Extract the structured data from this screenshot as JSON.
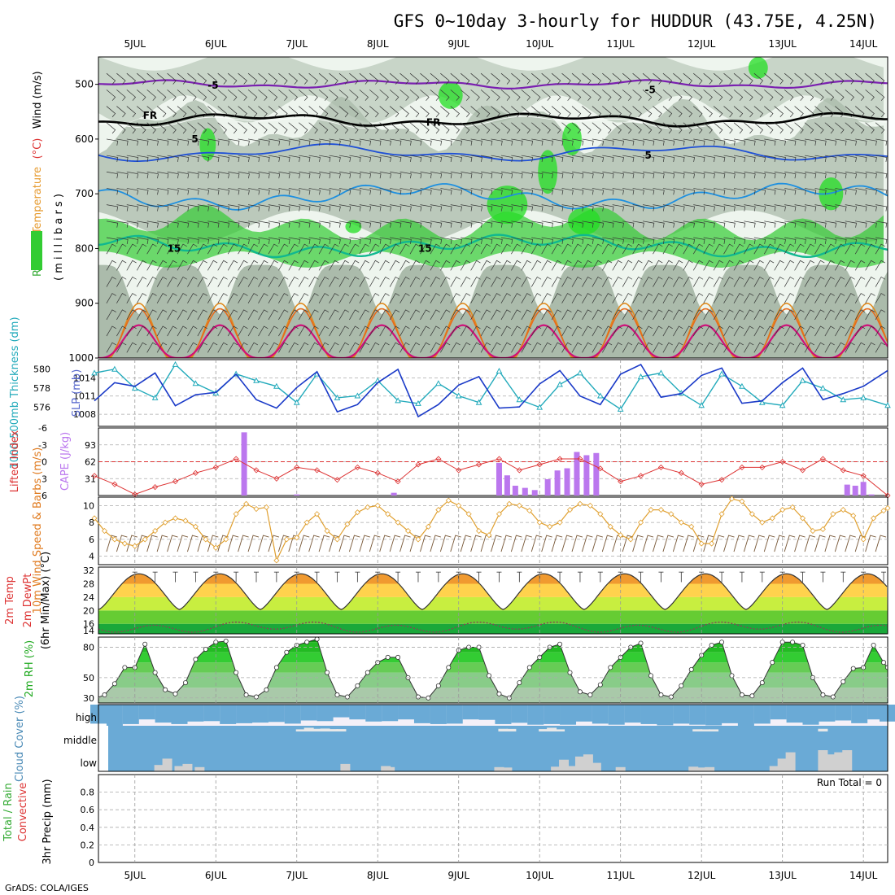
{
  "title": "GFS 0~10day 3-hourly for HUDDUR (43.75E, 4.25N)",
  "footer": "GrADS: COLA/IGES",
  "colors": {
    "rh_green": "#33cc33",
    "rh_gray": "#a9b9a9",
    "temp_purple": "#7a1fb0",
    "temp_blue": "#1e4fd6",
    "temp_lightblue": "#1e90e0",
    "temp_teal": "#10b890",
    "temp_orange": "#e08a1e",
    "temp_pink": "#d0107a",
    "thickness": "#22aabb",
    "slp": "#1a3ac8",
    "lifted_index": "#dd3333",
    "cape": "#bb77ee",
    "wind10m": "#e0a030",
    "barbs": "#7a5a3a",
    "rh2m": "#22bb22",
    "cloud": "#6aaad6",
    "cloud_clear": "#f4f0f8",
    "cloud_low_gray": "#d0d0d0"
  },
  "chart_data": [
    {
      "id": "upper_air",
      "type": "heatmap",
      "ylabel_parts": [
        {
          "text": "RH (%)",
          "color": "#33aa33"
        },
        {
          "text": "Temperature",
          "color": "#e69a2e"
        },
        {
          "text": "(°C)",
          "color": "#dd3333"
        },
        {
          "text": "Wind (m/s)",
          "color": "#000000"
        }
      ],
      "ylabel2": "( m i l l i b a r s )",
      "y_axis": {
        "min": 450,
        "max": 1000,
        "ticks": [
          500,
          600,
          700,
          800,
          900,
          1000
        ],
        "inverted": true
      },
      "x_dates": [
        "5JUL",
        "6JUL",
        "7JUL",
        "8JUL",
        "9JUL",
        "10JUL",
        "11JUL",
        "12JUL",
        "13JUL",
        "14JUL"
      ],
      "x_range_days": [
        4.55,
        14.3
      ],
      "isotherm_labels": [
        {
          "text": "-5",
          "day": 5.9,
          "p": 502,
          "color": "#7a1fb0"
        },
        {
          "text": "-5",
          "day": 11.3,
          "p": 510,
          "color": "#7a1fb0"
        },
        {
          "text": "FR",
          "day": 5.1,
          "p": 557,
          "color": "#000000"
        },
        {
          "text": "FR",
          "day": 8.6,
          "p": 570,
          "color": "#000000"
        },
        {
          "text": "5",
          "day": 5.7,
          "p": 600,
          "color": "#1e4fd6"
        },
        {
          "text": "5",
          "day": 11.3,
          "p": 630,
          "color": "#1e4fd6"
        },
        {
          "text": "15",
          "day": 5.4,
          "p": 800,
          "color": "#10b890"
        },
        {
          "text": "15",
          "day": 8.5,
          "p": 800,
          "color": "#10b890"
        }
      ]
    },
    {
      "id": "thickness_slp",
      "type": "line",
      "ylabel_left": "1000-500mb Thickness (dm)",
      "ylabel_right": "SLP (mb)",
      "y_left": {
        "min": 574,
        "max": 581,
        "ticks": [
          576,
          578,
          580
        ]
      },
      "y_right": {
        "min": 1006,
        "max": 1017,
        "ticks": [
          1008,
          1011,
          1014
        ]
      },
      "series": [
        {
          "name": "1000-500mb Thickness",
          "axis": "left",
          "x": [
            4.5,
            4.75,
            5.0,
            5.25,
            5.5,
            5.75,
            6.0,
            6.25,
            6.5,
            6.75,
            7.0,
            7.25,
            7.5,
            7.75,
            8.0,
            8.25,
            8.5,
            8.75,
            9.0,
            9.25,
            9.5,
            9.75,
            10.0,
            10.25,
            10.5,
            10.75,
            11.0,
            11.25,
            11.5,
            11.75,
            12.0,
            12.25,
            12.5,
            12.75,
            13.0,
            13.25,
            13.5,
            13.75,
            14.0,
            14.3
          ],
          "y": [
            579.6,
            580.0,
            578.0,
            577.0,
            580.5,
            578.5,
            577.5,
            579.5,
            578.8,
            578.2,
            576.5,
            579.5,
            577.0,
            577.2,
            578.8,
            576.7,
            576.4,
            578.5,
            577.2,
            576.5,
            579.8,
            576.8,
            576.0,
            578.4,
            579.6,
            577.2,
            575.8,
            579.2,
            579.6,
            577.5,
            576.2,
            579.5,
            578.2,
            576.5,
            576.2,
            578.8,
            578.0,
            576.8,
            577.0,
            576.2
          ]
        },
        {
          "name": "SLP",
          "axis": "right",
          "x": [
            4.5,
            4.75,
            5.0,
            5.25,
            5.5,
            5.75,
            6.0,
            6.25,
            6.5,
            6.75,
            7.0,
            7.25,
            7.5,
            7.75,
            8.0,
            8.25,
            8.5,
            8.75,
            9.0,
            9.25,
            9.5,
            9.75,
            10.0,
            10.25,
            10.5,
            10.75,
            11.0,
            11.25,
            11.5,
            11.75,
            12.0,
            12.25,
            12.5,
            12.75,
            13.0,
            13.25,
            13.5,
            13.75,
            14.0,
            14.3
          ],
          "y": [
            1010.2,
            1013.2,
            1012.6,
            1014.8,
            1009.4,
            1011.2,
            1011.6,
            1014.6,
            1010.4,
            1009.0,
            1012.4,
            1015.0,
            1008.4,
            1009.6,
            1013.2,
            1015.4,
            1007.6,
            1009.6,
            1012.8,
            1014.2,
            1009.0,
            1009.2,
            1013.0,
            1015.2,
            1011.0,
            1009.6,
            1014.6,
            1016.2,
            1010.8,
            1011.4,
            1014.4,
            1015.6,
            1009.8,
            1010.2,
            1013.2,
            1015.6,
            1010.4,
            1011.4,
            1012.6,
            1015.2
          ]
        }
      ]
    },
    {
      "id": "lifted_cape",
      "type": "bar",
      "ylabel_left": "Lifted Index",
      "ylabel_right": "CAPE (J/kg)",
      "y_left": {
        "min": -6,
        "max": 6,
        "ticks": [
          -6,
          -3,
          0,
          3,
          6
        ],
        "tick_labels": [
          "-6",
          "-3",
          "0",
          "3",
          "6"
        ],
        "inverted": true
      },
      "y_right": {
        "min": 0,
        "max": 124,
        "ticks": [
          31,
          62,
          93
        ]
      },
      "lifted_index": {
        "x": [
          4.5,
          4.75,
          5.0,
          5.25,
          5.5,
          5.75,
          6.0,
          6.25,
          6.5,
          6.75,
          7.0,
          7.25,
          7.5,
          7.75,
          8.0,
          8.25,
          8.5,
          8.75,
          9.0,
          9.25,
          9.5,
          9.75,
          10.0,
          10.25,
          10.5,
          10.75,
          11.0,
          11.25,
          11.5,
          11.75,
          12.0,
          12.25,
          12.5,
          12.75,
          13.0,
          13.25,
          13.5,
          13.75,
          14.0,
          14.3
        ],
        "y": [
          2.5,
          4.0,
          5.8,
          4.5,
          3.5,
          2.0,
          1.0,
          -0.5,
          1.5,
          3.0,
          1.0,
          1.5,
          3.2,
          1.0,
          2.0,
          3.5,
          0.5,
          -0.5,
          1.5,
          0.5,
          -0.5,
          1.5,
          0.5,
          -0.5,
          -0.5,
          1.2,
          3.5,
          2.5,
          1.0,
          2.0,
          4.0,
          3.2,
          1.0,
          1.0,
          0.0,
          1.5,
          -0.5,
          1.5,
          2.5,
          6.0
        ]
      },
      "cape": {
        "x": [
          6.35,
          7.0,
          8.2,
          9.5,
          9.6,
          9.7,
          9.82,
          9.94,
          10.1,
          10.22,
          10.34,
          10.46,
          10.58,
          10.7,
          13.8,
          13.9,
          14.0,
          14.1
        ],
        "y": [
          116,
          2,
          5,
          60,
          37,
          18,
          14,
          10,
          30,
          46,
          50,
          80,
          74,
          78,
          20,
          18,
          25,
          2
        ]
      }
    },
    {
      "id": "wind10m",
      "type": "line",
      "ylabel_left": "10m Wind Speed & Barbs (m/s)",
      "y": {
        "min": 3,
        "max": 11,
        "ticks": [
          4,
          6,
          8,
          10
        ]
      },
      "series": [
        {
          "name": "10m Wind Speed",
          "x": [
            4.5,
            4.625,
            4.75,
            4.875,
            5.0,
            5.125,
            5.25,
            5.375,
            5.5,
            5.625,
            5.75,
            5.875,
            6.0,
            6.125,
            6.25,
            6.375,
            6.5,
            6.625,
            6.75,
            6.875,
            7.0,
            7.125,
            7.25,
            7.375,
            7.5,
            7.625,
            7.75,
            7.875,
            8.0,
            8.125,
            8.25,
            8.375,
            8.5,
            8.625,
            8.75,
            8.875,
            9.0,
            9.125,
            9.25,
            9.375,
            9.5,
            9.625,
            9.75,
            9.875,
            10.0,
            10.125,
            10.25,
            10.375,
            10.5,
            10.625,
            10.75,
            10.875,
            11.0,
            11.125,
            11.25,
            11.375,
            11.5,
            11.625,
            11.75,
            11.875,
            12.0,
            12.125,
            12.25,
            12.375,
            12.5,
            12.625,
            12.75,
            12.875,
            13.0,
            13.125,
            13.25,
            13.375,
            13.5,
            13.625,
            13.75,
            13.875,
            14.0,
            14.125,
            14.25,
            14.3
          ],
          "y": [
            8.5,
            7.0,
            6.0,
            5.5,
            5.2,
            6.0,
            7.0,
            8.0,
            8.5,
            8.2,
            7.5,
            6.0,
            5.0,
            6.0,
            9.0,
            10.2,
            9.6,
            9.8,
            3.5,
            6.0,
            6.2,
            8.0,
            9.0,
            7.0,
            6.0,
            7.8,
            9.2,
            9.8,
            10.0,
            9.0,
            8.0,
            7.0,
            6.0,
            7.5,
            9.5,
            10.6,
            10.0,
            9.0,
            7.0,
            6.5,
            9.0,
            10.2,
            10.0,
            9.4,
            8.0,
            7.5,
            8.0,
            9.5,
            10.2,
            10.0,
            9.0,
            7.5,
            6.5,
            6.0,
            8.0,
            9.5,
            9.5,
            9.0,
            8.0,
            7.5,
            5.5,
            5.5,
            9.0,
            10.8,
            10.5,
            9.0,
            8.0,
            8.5,
            9.5,
            9.8,
            8.5,
            7.0,
            7.2,
            9.0,
            9.5,
            8.8,
            6.0,
            8.5,
            9.4,
            9.7
          ]
        }
      ]
    },
    {
      "id": "temp2m",
      "type": "area",
      "ylabel_parts": [
        {
          "text": "2m Temp",
          "color": "#dd3333"
        },
        {
          "text": "2m DewPt",
          "color": "#dd3333"
        },
        {
          "text": "(6hr Min/Max) (°C)",
          "color": "#000000"
        }
      ],
      "y": {
        "min": 13,
        "max": 33,
        "ticks": [
          14,
          16,
          20,
          24,
          28,
          32
        ],
        "tick_labels": [
          "14",
          "16",
          "20",
          "24",
          "28",
          "32"
        ]
      },
      "color_bands": [
        {
          "from": 13,
          "to": 16,
          "color": "#1aa83a"
        },
        {
          "from": 16,
          "to": 20,
          "color": "#66cc33"
        },
        {
          "from": 20,
          "to": 24,
          "color": "#c8ee40"
        },
        {
          "from": 24,
          "to": 28,
          "color": "#ffd24d"
        },
        {
          "from": 28,
          "to": 32,
          "color": "#f09a30"
        },
        {
          "from": 32,
          "to": 34,
          "color": "#d8571c"
        }
      ],
      "temp_daily_max": 31.0,
      "temp_daily_min": 20.3,
      "dewpoint_mean": 15.0
    },
    {
      "id": "rh2m",
      "type": "area",
      "ylabel_left": "2m RH (%)",
      "y": {
        "min": 25,
        "max": 90,
        "ticks": [
          30,
          50,
          80
        ]
      },
      "series": [
        {
          "name": "2m RH",
          "x": [
            4.5,
            4.625,
            4.75,
            4.875,
            5.0,
            5.125,
            5.25,
            5.375,
            5.5,
            5.625,
            5.75,
            5.875,
            6.0,
            6.125,
            6.25,
            6.375,
            6.5,
            6.625,
            6.75,
            6.875,
            7.0,
            7.125,
            7.25,
            7.375,
            7.5,
            7.625,
            7.75,
            7.875,
            8.0,
            8.125,
            8.25,
            8.375,
            8.5,
            8.625,
            8.75,
            8.875,
            9.0,
            9.125,
            9.25,
            9.375,
            9.5,
            9.625,
            9.75,
            9.875,
            10.0,
            10.125,
            10.25,
            10.375,
            10.5,
            10.625,
            10.75,
            10.875,
            11.0,
            11.125,
            11.25,
            11.375,
            11.5,
            11.625,
            11.75,
            11.875,
            12.0,
            12.125,
            12.25,
            12.375,
            12.5,
            12.625,
            12.75,
            12.875,
            13.0,
            13.125,
            13.25,
            13.375,
            13.5,
            13.625,
            13.75,
            13.875,
            14.0,
            14.125,
            14.25,
            14.3
          ],
          "y": [
            29,
            33,
            44,
            60,
            60,
            83,
            55,
            38,
            34,
            45,
            68,
            78,
            85,
            86,
            55,
            33,
            31,
            38,
            60,
            75,
            82,
            85,
            88,
            55,
            33,
            31,
            42,
            55,
            65,
            70,
            70,
            50,
            31,
            30,
            42,
            60,
            77,
            80,
            80,
            52,
            34,
            30,
            45,
            60,
            70,
            80,
            83,
            55,
            36,
            33,
            43,
            60,
            70,
            80,
            84,
            52,
            33,
            31,
            42,
            58,
            72,
            82,
            85,
            52,
            33,
            32,
            45,
            65,
            85,
            85,
            82,
            50,
            33,
            31,
            46,
            59,
            60,
            82,
            65,
            60
          ]
        }
      ]
    },
    {
      "id": "cloud_cover",
      "type": "bar",
      "ylabel_left": "Cloud Cover (%)",
      "levels": [
        "high",
        "middle",
        "low"
      ],
      "high_x": [
        4.55,
        4.75,
        4.95,
        5.15,
        5.35,
        5.55,
        5.75,
        5.95,
        6.15,
        6.35,
        6.55,
        6.75,
        6.95,
        7.15,
        7.35,
        7.55,
        7.75,
        7.95,
        8.15,
        8.35,
        8.55,
        8.75,
        8.95,
        9.15,
        9.35,
        9.55,
        9.75,
        9.95,
        10.15,
        10.35,
        10.55,
        10.75,
        10.95,
        11.15,
        11.35,
        11.55,
        11.75,
        11.95,
        12.15,
        12.35,
        12.55,
        12.75,
        12.95,
        13.15,
        13.35,
        13.55,
        13.75,
        13.95,
        14.15,
        14.3
      ],
      "high_y": [
        90,
        100,
        92,
        70,
        85,
        92,
        80,
        78,
        92,
        88,
        85,
        82,
        90,
        75,
        78,
        60,
        70,
        80,
        78,
        70,
        88,
        92,
        90,
        70,
        72,
        92,
        86,
        95,
        92,
        95,
        80,
        90,
        95,
        85,
        92,
        98,
        90,
        95,
        98,
        88,
        100,
        90,
        70,
        85,
        95,
        80,
        75,
        88,
        70,
        80
      ],
      "middle_x": [
        7.05,
        7.15,
        7.25,
        7.35,
        7.45,
        7.55,
        9.55,
        9.65,
        10.05,
        10.15,
        10.25,
        11.95,
        12.05,
        12.15,
        13.5
      ],
      "middle_y": [
        40,
        70,
        50,
        55,
        45,
        45,
        50,
        48,
        45,
        70,
        40,
        42,
        40,
        40,
        50
      ],
      "low_x": [
        5.3,
        5.4,
        5.55,
        5.65,
        5.8,
        7.6,
        8.1,
        8.15,
        9.5,
        9.6,
        10.2,
        10.3,
        10.4,
        10.5,
        10.6,
        10.7,
        11.0,
        11.9,
        12.0,
        12.1,
        12.9,
        13.0,
        13.1,
        13.5,
        13.6,
        13.7,
        13.8
      ],
      "low_y": [
        30,
        60,
        25,
        35,
        20,
        35,
        25,
        20,
        20,
        18,
        22,
        55,
        25,
        70,
        80,
        40,
        20,
        22,
        18,
        20,
        25,
        60,
        90,
        100,
        80,
        90,
        100
      ]
    },
    {
      "id": "precip",
      "type": "bar",
      "ylabel_parts": [
        {
          "text": "Total / Rain",
          "color": "#33aa33"
        },
        {
          "text": "Convective",
          "color": "#dd3333"
        },
        {
          "text": "3hr Precip (mm)",
          "color": "#000000"
        }
      ],
      "y": {
        "min": 0,
        "max": 1,
        "ticks": [
          0,
          0.2,
          0.4,
          0.6,
          0.8
        ],
        "tick_labels": [
          "0",
          "0.2",
          "0.4",
          "0.6",
          "0.8"
        ]
      },
      "run_total": "Run Total = 0",
      "values": []
    }
  ]
}
